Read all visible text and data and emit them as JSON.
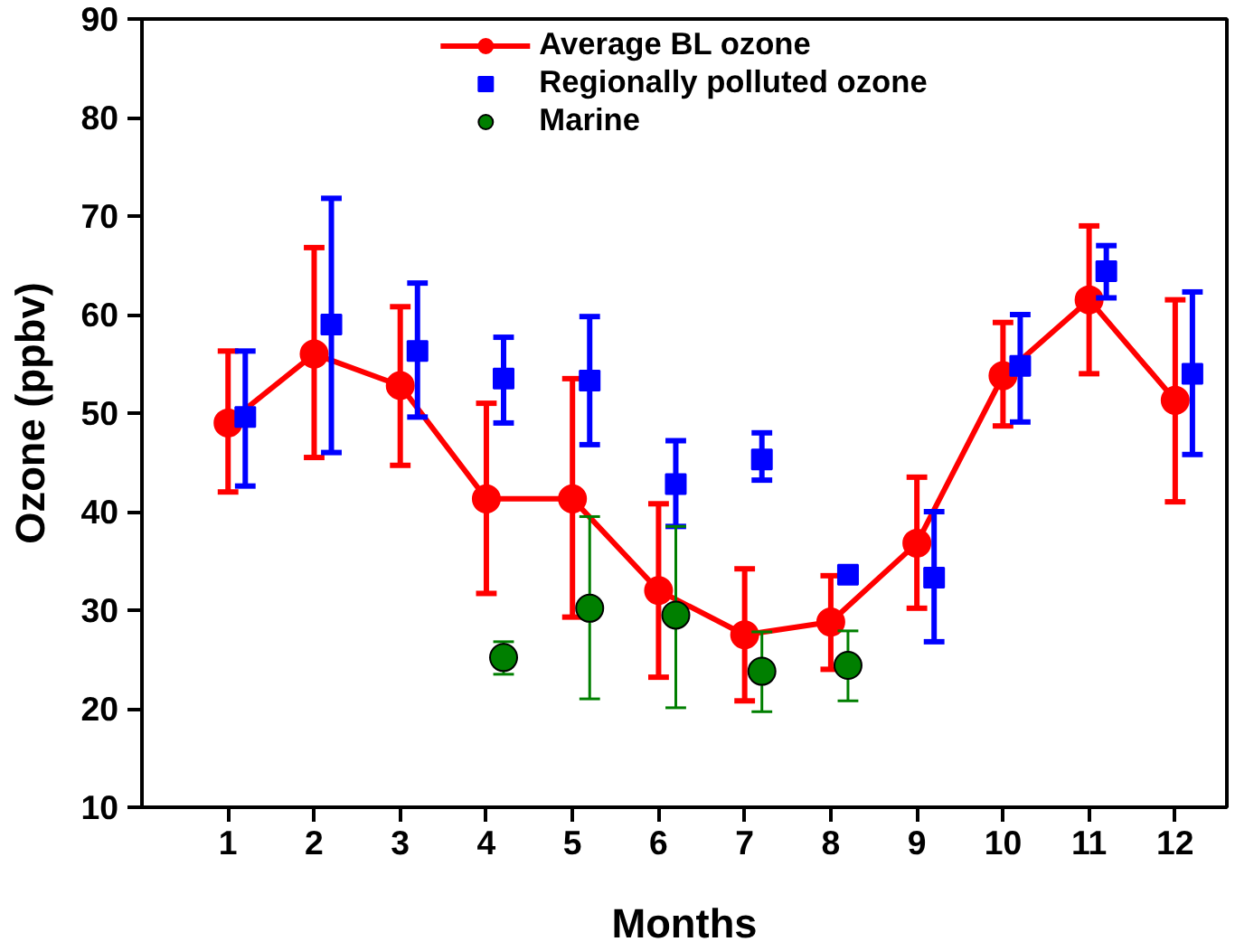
{
  "chart_data": {
    "type": "line",
    "xlabel": "Months",
    "ylabel": "Ozone (ppbv)",
    "xlim": [
      0,
      12.6
    ],
    "xticks": [
      1,
      2,
      3,
      4,
      5,
      6,
      7,
      8,
      9,
      10,
      11,
      12
    ],
    "ylim": [
      10,
      90
    ],
    "yticks": [
      10,
      20,
      30,
      40,
      50,
      60,
      70,
      80,
      90
    ],
    "grid": false,
    "legend": "top",
    "series": [
      {
        "name": "Average BL ozone",
        "marker": "circle",
        "color": "#ff0000",
        "x": [
          1,
          2,
          3,
          4,
          5,
          6,
          7,
          8,
          9,
          10,
          11,
          12
        ],
        "values": [
          49,
          56,
          52.8,
          41.3,
          41.3,
          32,
          27.5,
          28.8,
          36.8,
          53.8,
          61.5,
          51.3
        ],
        "errors": [
          [
            42,
            56.3
          ],
          [
            45.5,
            66.8
          ],
          [
            44.7,
            60.8
          ],
          [
            31.7,
            51
          ],
          [
            29.3,
            53.5
          ],
          [
            23.2,
            40.8
          ],
          [
            20.8,
            34.2
          ],
          [
            24,
            33.5
          ],
          [
            30.2,
            43.5
          ],
          [
            48.7,
            59.2
          ],
          [
            54,
            69
          ],
          [
            41,
            61.5
          ]
        ]
      },
      {
        "name": "Regionally polluted ozone",
        "type": "scatter",
        "marker": "square",
        "color": "#0000ff",
        "x": [
          1.2,
          2.2,
          3.2,
          4.2,
          5.2,
          6.2,
          7.2,
          8.2,
          9.2,
          10.2,
          11.2,
          12.2
        ],
        "values": [
          49.6,
          59,
          56.3,
          53.5,
          53.3,
          42.8,
          45.3,
          33.6,
          33.3,
          54.8,
          64.4,
          54
        ],
        "errors": [
          [
            42.6,
            56.3
          ],
          [
            46,
            71.8
          ],
          [
            49.6,
            63.2
          ],
          [
            49,
            57.7
          ],
          [
            46.8,
            59.8
          ],
          [
            38.5,
            47.2
          ],
          [
            43.2,
            48
          ],
          [
            33,
            34.2
          ],
          [
            26.8,
            40
          ],
          [
            49.1,
            60
          ],
          [
            61.7,
            67
          ],
          [
            45.8,
            62.3
          ]
        ]
      },
      {
        "name": "Marine",
        "type": "scatter",
        "marker": "circle",
        "color": "#007f00",
        "x": [
          4.2,
          5.2,
          6.2,
          7.2,
          8.2
        ],
        "values": [
          25.2,
          30.2,
          29.5,
          23.8,
          24.4
        ],
        "errors": [
          [
            23.5,
            26.8
          ],
          [
            21,
            39.5
          ],
          [
            20.1,
            38.5
          ],
          [
            19.7,
            27.8
          ],
          [
            20.8,
            27.9
          ]
        ]
      }
    ]
  }
}
